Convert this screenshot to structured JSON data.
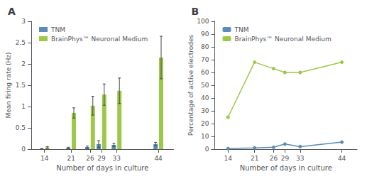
{
  "chart_data": [
    {
      "type": "bar",
      "title": "A",
      "x": [
        14,
        21,
        26,
        29,
        33,
        44
      ],
      "xlim": [
        10.5,
        48
      ],
      "xticks": [
        14,
        21,
        26,
        29,
        33,
        44
      ],
      "xlabel": "Number of days in culture",
      "ylabel": "Mean firing rate (Hz)",
      "ylim": [
        0,
        3.0
      ],
      "yticks": [
        0,
        0.5,
        1,
        1.5,
        2,
        2.5,
        3
      ],
      "series": [
        {
          "name": "TNM",
          "color": "#5b8db8",
          "values": [
            0.01,
            0.03,
            0.05,
            0.12,
            0.1,
            0.12
          ],
          "errors": [
            0.005,
            0.015,
            0.025,
            0.08,
            0.04,
            0.04
          ]
        },
        {
          "name": "BrainPhys™ Neuronal Medium",
          "color": "#9dc848",
          "values": [
            0.04,
            0.85,
            1.02,
            1.28,
            1.37,
            2.15
          ],
          "errors": [
            0.02,
            0.12,
            0.22,
            0.25,
            0.3,
            0.5
          ]
        }
      ],
      "legend": "upper left",
      "grid": false
    },
    {
      "type": "line",
      "title": "B",
      "x": [
        14,
        21,
        26,
        29,
        33,
        44
      ],
      "xlim": [
        10.5,
        48
      ],
      "xticks": [
        14,
        21,
        26,
        29,
        33,
        44
      ],
      "xlabel": "Number of days in culture",
      "ylabel": "Percentage of active electrodes",
      "ylim": [
        0,
        100
      ],
      "yticks": [
        0,
        10,
        20,
        30,
        40,
        50,
        60,
        70,
        80,
        90,
        100
      ],
      "series": [
        {
          "name": "TNM",
          "color": "#5b8db8",
          "marker": "circle",
          "values": [
            0.5,
            1.0,
            1.5,
            4.0,
            2.0,
            5.5
          ]
        },
        {
          "name": "BrainPhys™ Neuronal Medium",
          "color": "#9dc848",
          "marker": "circle",
          "values": [
            25,
            68,
            63,
            60,
            60,
            68
          ]
        }
      ],
      "legend": "upper left",
      "grid": false
    }
  ]
}
